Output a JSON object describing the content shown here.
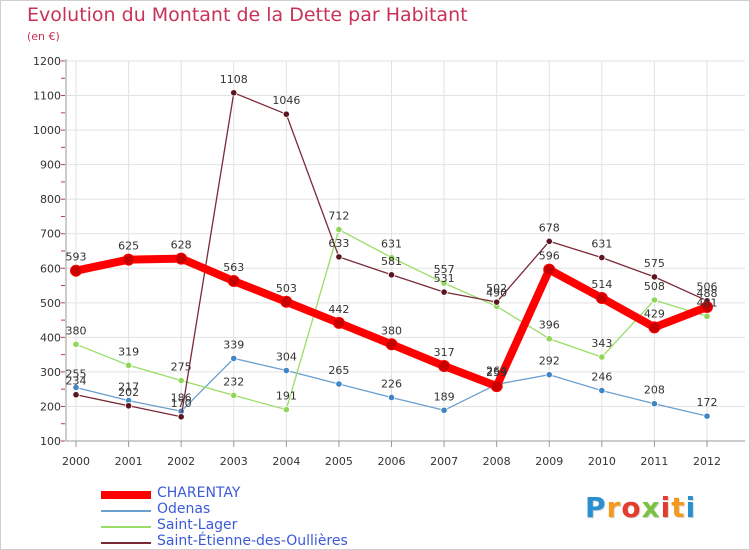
{
  "chart_data": {
    "type": "line",
    "title": "Evolution du Montant de la Dette par Habitant",
    "subtitle": "(en €)",
    "x": [
      "2000",
      "2001",
      "2002",
      "2003",
      "2004",
      "2005",
      "2006",
      "2007",
      "2008",
      "2009",
      "2010",
      "2011",
      "2012"
    ],
    "ylim": [
      100,
      1200
    ],
    "yticks": [
      "100",
      "200",
      "300",
      "400",
      "500",
      "600",
      "700",
      "800",
      "900",
      "1000",
      "1100",
      "1200"
    ],
    "grid": true,
    "legend_position": "bottom-left",
    "series": [
      {
        "name": "CHARENTAY",
        "color": "#ff0000",
        "values": [
          593,
          625,
          628,
          563,
          503,
          442,
          380,
          317,
          259,
          596,
          514,
          429,
          488
        ],
        "labels": [
          "593",
          "625",
          "628",
          "563",
          "503",
          "442",
          "380",
          "317",
          "259",
          "596",
          "514",
          "429",
          "488"
        ]
      },
      {
        "name": "Odenas",
        "color": "#6a9fd0",
        "values": [
          255,
          217,
          186,
          339,
          304,
          265,
          226,
          189,
          264,
          292,
          246,
          208,
          172
        ],
        "labels": [
          "255",
          "217",
          "186",
          "339",
          "304",
          "265",
          "226",
          "189",
          "264",
          "292",
          "246",
          "208",
          "172"
        ]
      },
      {
        "name": "Saint-Lager",
        "color": "#99dd66",
        "values": [
          380,
          319,
          275,
          232,
          191,
          712,
          631,
          557,
          490,
          396,
          343,
          508,
          461
        ],
        "labels": [
          "380",
          "319",
          "275",
          "232",
          "191",
          "712",
          "631",
          "557",
          "490",
          "396",
          "343",
          "508",
          "461"
        ]
      },
      {
        "name": "Saint-Étienne-des-Oullières",
        "color": "#7a2a36",
        "values": [
          234,
          202,
          170,
          1108,
          1046,
          633,
          581,
          531,
          502,
          678,
          631,
          575,
          506
        ],
        "labels": [
          "234",
          "202",
          "170",
          "1108",
          "1046",
          "633",
          "581",
          "531",
          "502",
          "678",
          "631",
          "575",
          "506"
        ]
      }
    ]
  },
  "logo": {
    "letters": [
      "P",
      "r",
      "o",
      "x",
      "i",
      "t",
      "i"
    ],
    "colors": [
      "#2a8fd0",
      "#f59a1e",
      "#e33b2e",
      "#7cc242",
      "#e33b2e",
      "#f59a1e",
      "#2a8fd0"
    ]
  }
}
